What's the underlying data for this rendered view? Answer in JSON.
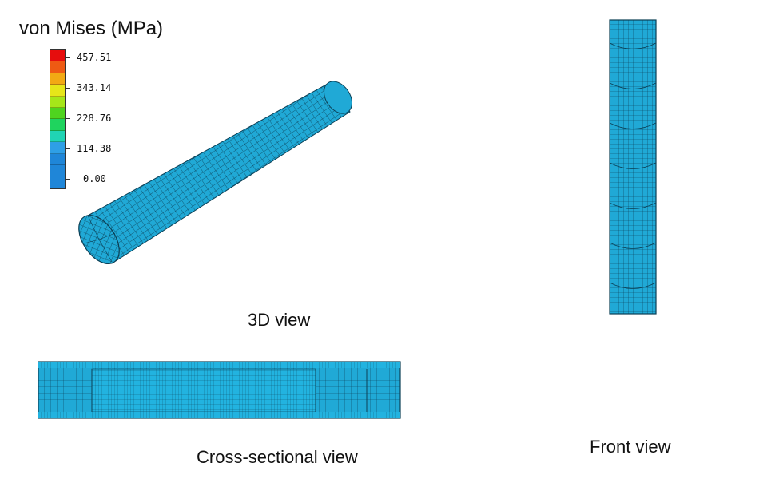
{
  "legend": {
    "title": "von Mises (MPa)",
    "bands": [
      "#e60d0d",
      "#ee5a13",
      "#f2a914",
      "#e6e619",
      "#a6e619",
      "#4fd41f",
      "#1fd45e",
      "#20d4b4",
      "#2e9fe6",
      "#1f86d8",
      "#1f86d8",
      "#1f86d8"
    ],
    "labels": [
      "457.51",
      "343.14",
      "228.76",
      "114.38",
      "0.00"
    ]
  },
  "views": {
    "iso_label": "3D view",
    "front_label": "Front view",
    "section_label": "Cross-sectional view"
  },
  "colors": {
    "mesh_fill": "#20a9d6",
    "mesh_line": "#0b3f55"
  }
}
